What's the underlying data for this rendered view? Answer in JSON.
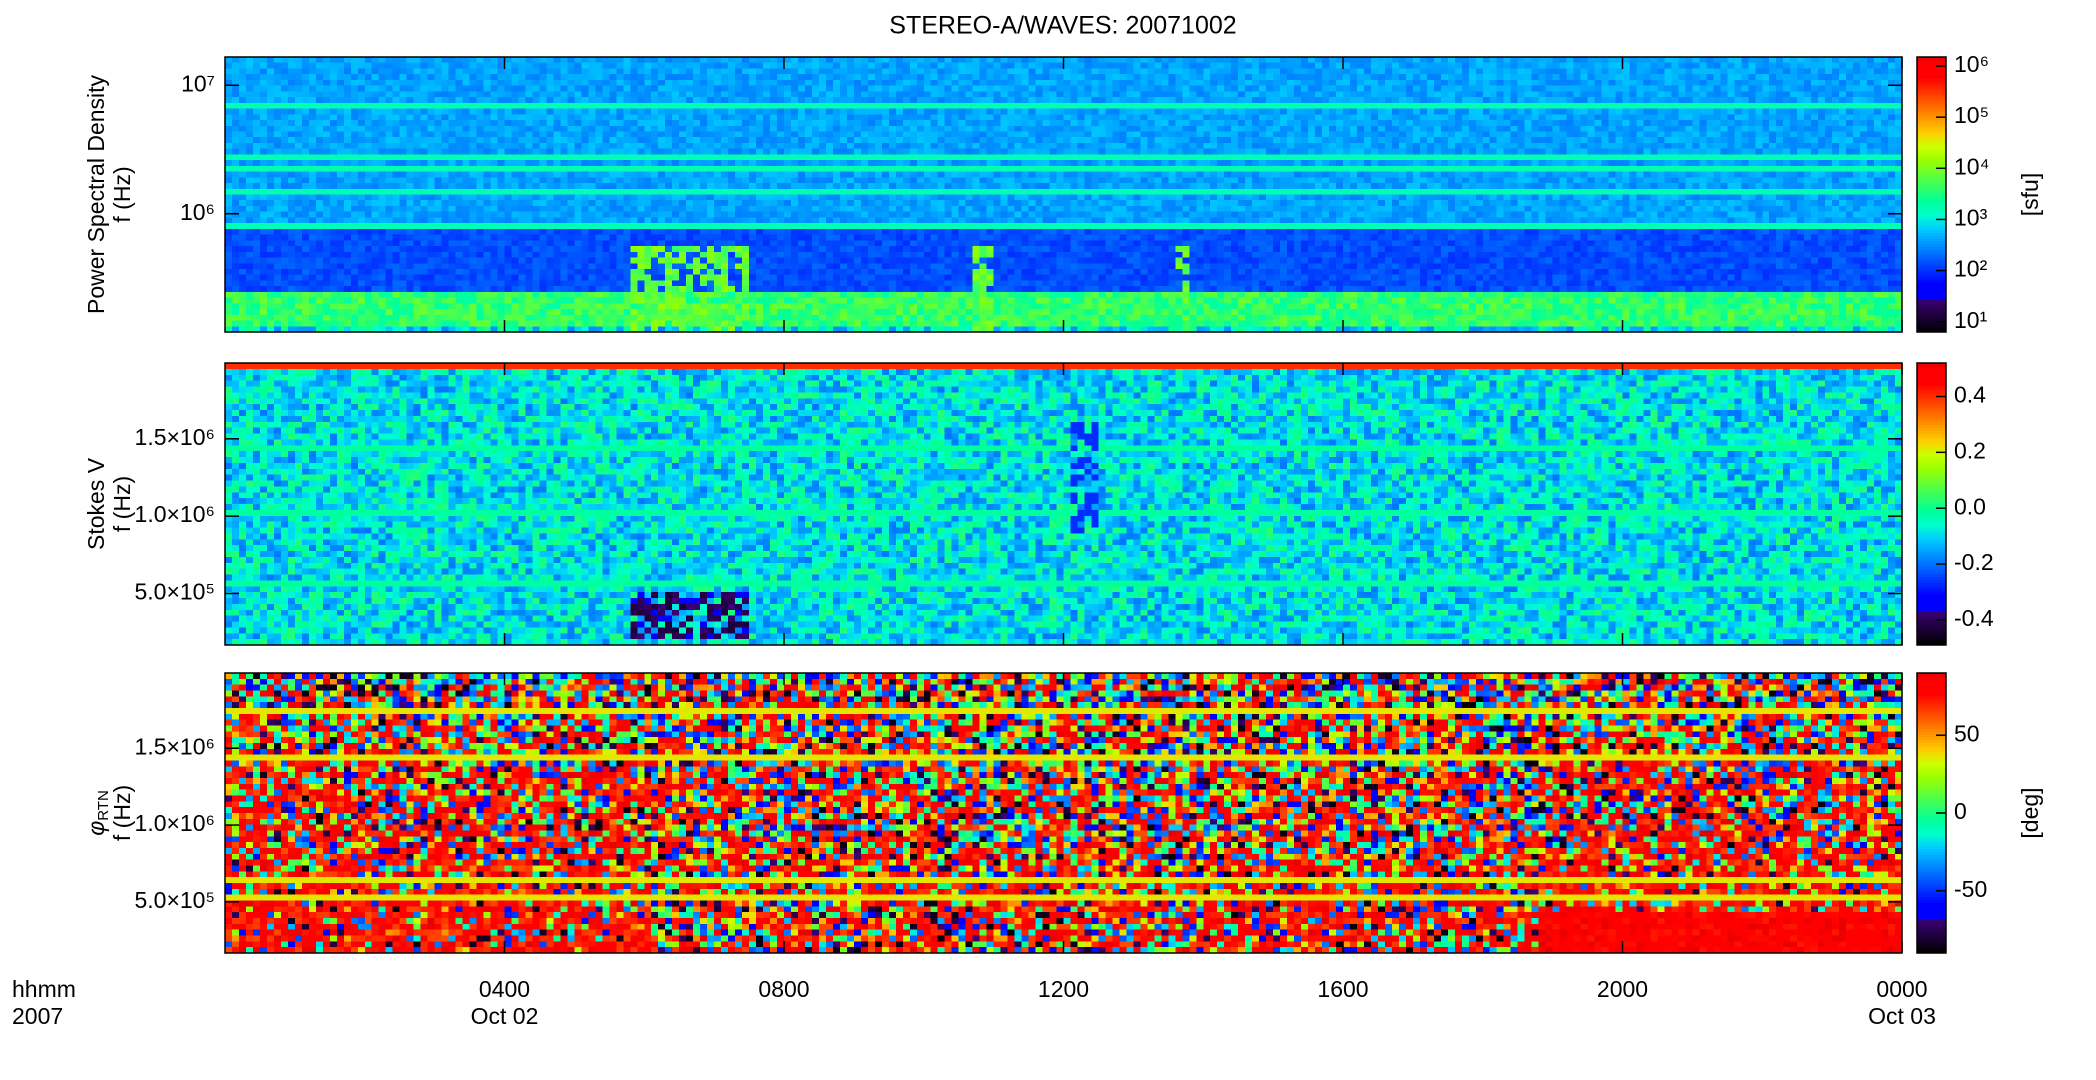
{
  "chart_data": [
    {
      "type": "spectrogram",
      "title": "STEREO-A/WAVES: 20071002",
      "ylabel": [
        "Power Spectral Density",
        "f (Hz)"
      ],
      "xlim": [
        0,
        24
      ],
      "xticks": [
        4,
        8,
        12,
        16,
        20,
        24
      ],
      "ylim": [
        120000,
        16600000
      ],
      "ylog": true,
      "yticks": [
        {
          "value": 1000000,
          "label": "10⁶"
        },
        {
          "value": 10000000,
          "label": "10⁷"
        }
      ],
      "colorbar": {
        "clim": [
          6.3,
          1500000
        ],
        "log": true,
        "label": "[sfu]",
        "ticks": [
          {
            "value": 10,
            "label": "10¹"
          },
          {
            "value": 100,
            "label": "10²"
          },
          {
            "value": 1000,
            "label": "10³"
          },
          {
            "value": 10000,
            "label": "10⁴"
          },
          {
            "value": 100000,
            "label": "10⁵"
          },
          {
            "value": 1000000,
            "label": "10⁶"
          }
        ]
      }
    },
    {
      "type": "spectrogram",
      "ylabel": [
        "Stokes V",
        "f (Hz)"
      ],
      "xlim": [
        0,
        24
      ],
      "xticks": [
        4,
        8,
        12,
        16,
        20,
        24
      ],
      "ylim": [
        167000,
        1990000
      ],
      "ylog": false,
      "yticks": [
        {
          "value": 500000,
          "label": "5.0×10⁵"
        },
        {
          "value": 1000000,
          "label": "1.0×10⁶"
        },
        {
          "value": 1500000,
          "label": "1.5×10⁶"
        }
      ],
      "colorbar": {
        "clim": [
          -0.49,
          0.52
        ],
        "log": false,
        "ticks": [
          -0.4,
          -0.2,
          {
            "value": 0,
            "label": "0.0"
          },
          0.2,
          0.4
        ]
      }
    },
    {
      "type": "spectrogram",
      "ylabel_symbol": "φ",
      "ylabel_subscript": "RTN",
      "ylabel": [
        "f (Hz)"
      ],
      "xlim": [
        0,
        24
      ],
      "xticks": [
        {
          "value": 4,
          "label": "0400"
        },
        {
          "value": 8,
          "label": "0800"
        },
        {
          "value": 12,
          "label": "1200"
        },
        {
          "value": 16,
          "label": "1600"
        },
        {
          "value": 20,
          "label": "2000"
        },
        {
          "value": 24,
          "label": "0000"
        }
      ],
      "xtick_dates": [
        {
          "value": 4,
          "label": "Oct 02"
        },
        {
          "value": 24,
          "label": "Oct 03"
        }
      ],
      "xaxis_label": [
        "hhmm",
        "2007"
      ],
      "ylim": [
        167000,
        1990000
      ],
      "ylog": false,
      "yticks": [
        {
          "value": 500000,
          "label": "5.0×10⁵"
        },
        {
          "value": 1000000,
          "label": "1.0×10⁶"
        },
        {
          "value": 1500000,
          "label": "1.5×10⁶"
        }
      ],
      "colorbar": {
        "clim": [
          -90,
          90
        ],
        "log": false,
        "label": "[deg]",
        "ticks": [
          -50,
          0,
          50
        ]
      }
    }
  ]
}
